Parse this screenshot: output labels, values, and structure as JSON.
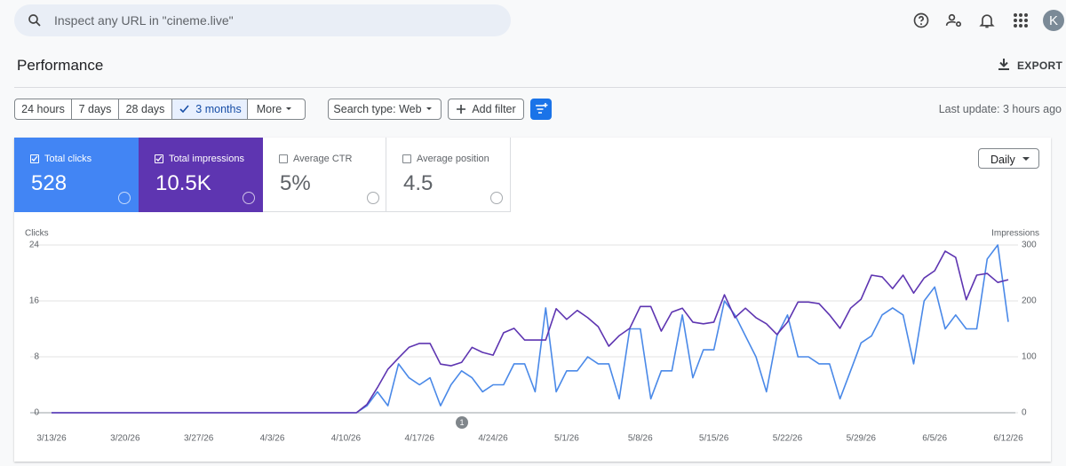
{
  "search": {
    "placeholder": "Inspect any URL in \"cineme.live\""
  },
  "avatar": "K",
  "header": {
    "title": "Performance",
    "export": "EXPORT"
  },
  "filters": {
    "ranges": [
      "24 hours",
      "7 days",
      "28 days",
      "3 months",
      "More"
    ],
    "selected_range": 3,
    "search_type": "Search type: Web",
    "add_filter": "Add filter",
    "last_update": "Last update: 3 hours ago"
  },
  "metrics": [
    {
      "label": "Total clicks",
      "value": 528,
      "selected": true,
      "color": "#4285f4"
    },
    {
      "label": "Total impressions",
      "value": "10.5K",
      "selected": true,
      "color": "#5e35b1"
    },
    {
      "label": "Average CTR",
      "value": "5%",
      "selected": false,
      "color": "#00897b"
    },
    {
      "label": "Average position",
      "value": 4.5,
      "selected": false,
      "color": "#e8710a"
    }
  ],
  "granularity": "Daily",
  "chart_data": {
    "type": "line",
    "y_label": "Clicks",
    "y2_label": "Impressions",
    "categories": [
      "3/13/26",
      null,
      null,
      null,
      null,
      null,
      null,
      "3/20/26",
      null,
      null,
      null,
      null,
      null,
      null,
      "3/27/26",
      null,
      null,
      null,
      null,
      null,
      null,
      "4/3/26",
      null,
      null,
      null,
      null,
      null,
      null,
      "4/10/26",
      null,
      null,
      null,
      null,
      null,
      null,
      "4/17/26",
      null,
      null,
      null,
      null,
      null,
      null,
      "4/24/26",
      null,
      null,
      null,
      null,
      null,
      null,
      "5/1/26",
      null,
      null,
      null,
      null,
      null,
      null,
      "5/8/26",
      null,
      null,
      null,
      null,
      null,
      null,
      "5/15/26",
      null,
      null,
      null,
      null,
      null,
      null,
      "5/22/26",
      null,
      null,
      null,
      null,
      null,
      null,
      "5/29/26",
      null,
      null,
      null,
      null,
      null,
      null,
      "6/5/26",
      null,
      null,
      null,
      null,
      null,
      null,
      "6/12/26"
    ],
    "series": [
      {
        "color": "#4a89e8",
        "values": [
          0,
          0,
          0,
          0,
          0,
          0,
          0,
          0,
          0,
          0,
          0,
          0,
          0,
          0,
          0,
          0,
          0,
          0,
          0,
          0,
          0,
          0,
          0,
          0,
          0,
          0,
          0,
          0,
          0,
          0,
          1,
          3,
          1,
          7,
          5,
          4,
          5,
          1,
          4,
          6,
          5,
          3,
          4,
          4,
          7,
          7,
          3,
          15,
          3,
          6,
          6,
          8,
          7,
          7,
          2,
          12,
          12,
          2,
          6,
          6,
          14,
          5,
          9,
          9,
          16,
          14,
          11,
          8,
          3,
          11,
          14,
          8,
          8,
          7,
          7,
          2,
          6,
          10,
          11,
          14,
          15,
          14,
          7,
          16,
          18,
          12,
          14,
          12,
          12,
          22,
          24,
          13
        ]
      },
      {
        "color": "#5e35b1",
        "axis": "y2",
        "values": [
          0,
          0,
          0,
          0,
          0,
          0,
          0,
          0,
          0,
          0,
          0,
          0,
          0,
          0,
          0,
          0,
          0,
          0,
          0,
          0,
          0,
          0,
          0,
          0,
          0,
          0,
          0,
          0,
          0,
          0,
          15,
          45,
          78,
          98,
          117,
          124,
          124,
          87,
          84,
          90,
          117,
          108,
          103,
          143,
          151,
          130,
          130,
          130,
          186,
          167,
          183,
          170,
          154,
          119,
          138,
          151,
          190,
          190,
          146,
          180,
          187,
          162,
          159,
          162,
          211,
          170,
          187,
          170,
          159,
          140,
          162,
          198,
          198,
          195,
          175,
          151,
          187,
          203,
          246,
          243,
          222,
          246,
          214,
          241,
          254,
          289,
          278,
          202,
          246,
          249,
          233,
          238
        ]
      }
    ],
    "ylim": [
      0,
      24
    ],
    "yticks": [
      0,
      8,
      16,
      24
    ],
    "y2lim": [
      0,
      300
    ],
    "y2ticks": [
      0,
      100,
      200,
      300
    ],
    "grid": true,
    "annotations": [
      "1"
    ]
  }
}
